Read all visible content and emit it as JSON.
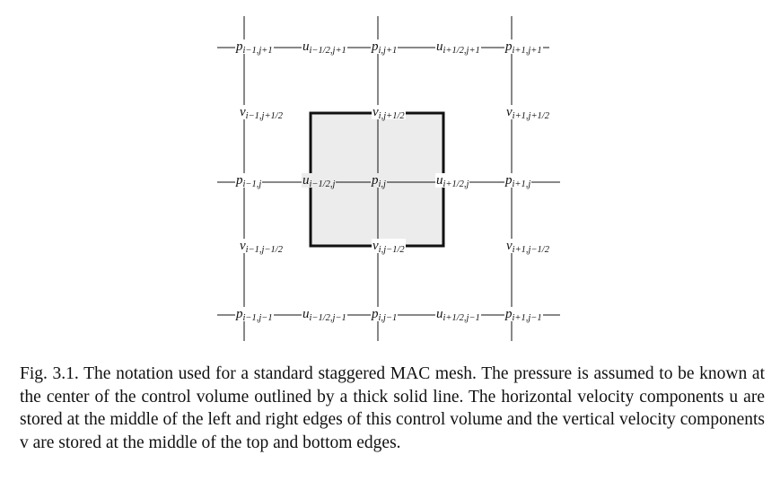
{
  "nodes": {
    "p_im1_jp1": {
      "sym": "p",
      "sub": "i−1,j+1"
    },
    "u_im12_jp1": {
      "sym": "u",
      "sub": "i−1/2,j+1"
    },
    "p_i_jp1": {
      "sym": "p",
      "sub": "i,j+1"
    },
    "u_ip12_jp1": {
      "sym": "u",
      "sub": "i+1/2,j+1"
    },
    "p_ip1_jp1": {
      "sym": "p",
      "sub": "i+1,j+1"
    },
    "v_im1_jp12": {
      "sym": "v",
      "sub": "i−1,j+1/2"
    },
    "v_i_jp12": {
      "sym": "v",
      "sub": "i,j+1/2"
    },
    "v_ip1_jp12": {
      "sym": "v",
      "sub": "i+1,j+1/2"
    },
    "p_im1_j": {
      "sym": "p",
      "sub": "i−1,j"
    },
    "u_im12_j": {
      "sym": "u",
      "sub": "i−1/2,j"
    },
    "p_i_j": {
      "sym": "p",
      "sub": "i,j"
    },
    "u_ip12_j": {
      "sym": "u",
      "sub": "i+1/2,j"
    },
    "p_ip1_j": {
      "sym": "p",
      "sub": "i+1,j"
    },
    "v_im1_jm12": {
      "sym": "v",
      "sub": "i−1,j−1/2"
    },
    "v_i_jm12": {
      "sym": "v",
      "sub": "i,j−1/2"
    },
    "v_ip1_jm12": {
      "sym": "v",
      "sub": "i+1,j−1/2"
    },
    "p_im1_jm1": {
      "sym": "p",
      "sub": "i−1,j−1"
    },
    "u_im12_jm1": {
      "sym": "u",
      "sub": "i−1/2,j−1"
    },
    "p_i_jm1": {
      "sym": "p",
      "sub": "i,j−1"
    },
    "u_ip12_jm1": {
      "sym": "u",
      "sub": "i+1/2,j−1"
    },
    "p_ip1_jm1": {
      "sym": "p",
      "sub": "i+1,j−1"
    }
  },
  "caption": "Fig. 3.1.  The notation used for a standard staggered MAC mesh. The pressure is assumed to be known at the center of the control volume outlined by a thick solid line.  The horizontal velocity components u are stored at the middle of the left and right edges of this control volume and the vertical velocity components v are stored at the middle of the top and bottom edges.",
  "colors": {
    "control_volume_fill": "#ececec",
    "line": "#111111"
  }
}
